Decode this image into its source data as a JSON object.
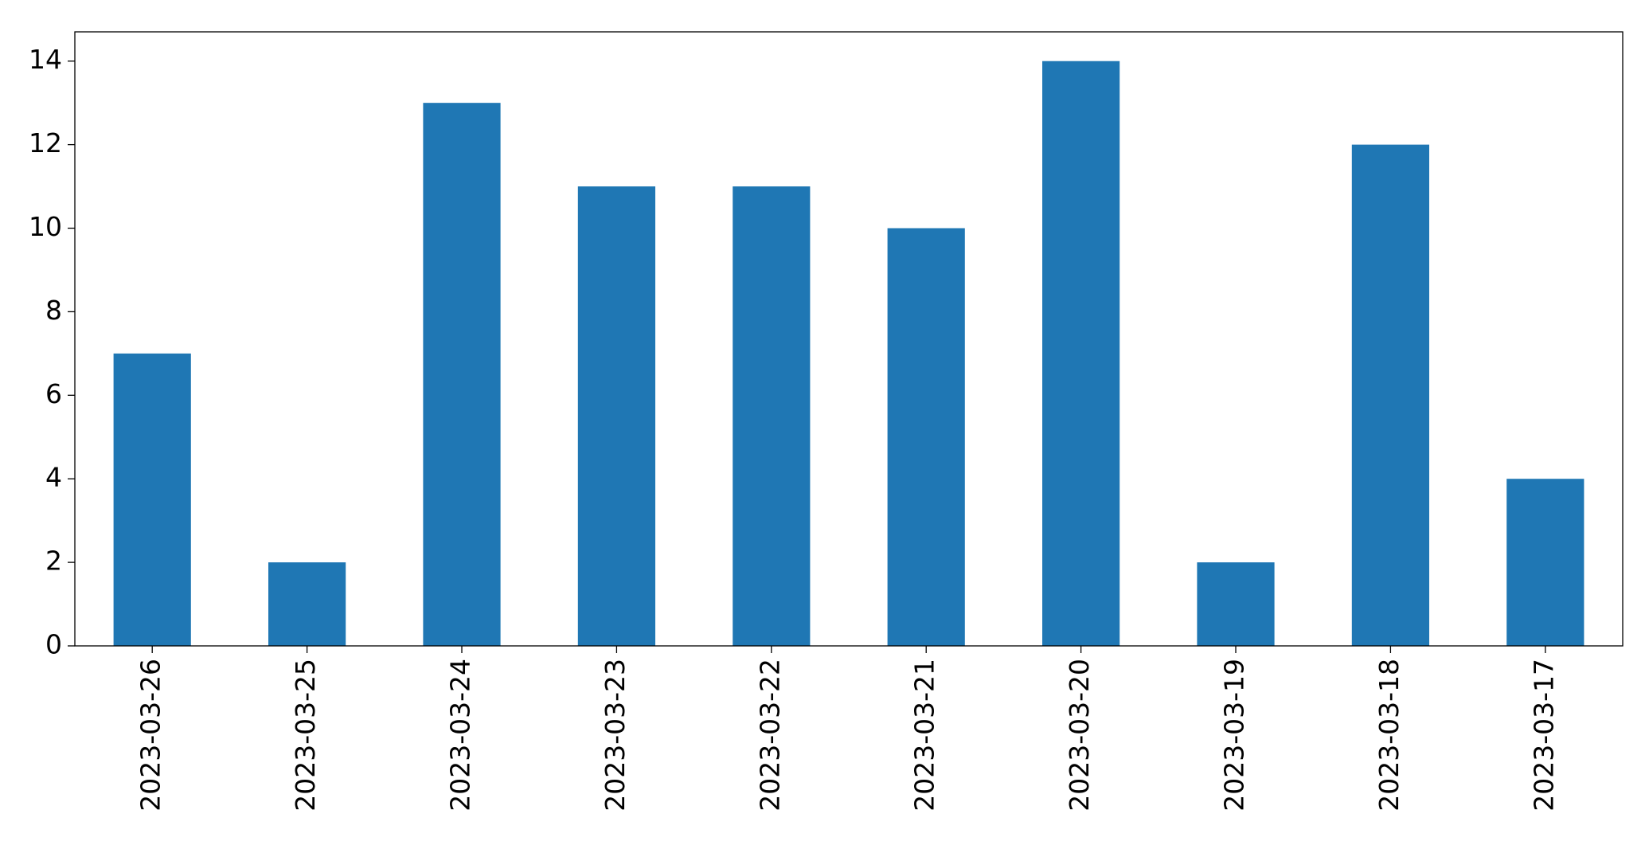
{
  "chart_data": {
    "type": "bar",
    "categories": [
      "2023-03-26",
      "2023-03-25",
      "2023-03-24",
      "2023-03-23",
      "2023-03-22",
      "2023-03-21",
      "2023-03-20",
      "2023-03-19",
      "2023-03-18",
      "2023-03-17"
    ],
    "values": [
      7,
      2,
      13,
      11,
      11,
      10,
      14,
      2,
      12,
      4
    ],
    "color": "#1f77b4",
    "ylim": [
      0,
      14.7
    ],
    "yticks": [
      0,
      2,
      4,
      6,
      8,
      10,
      12,
      14
    ],
    "grid": false
  }
}
